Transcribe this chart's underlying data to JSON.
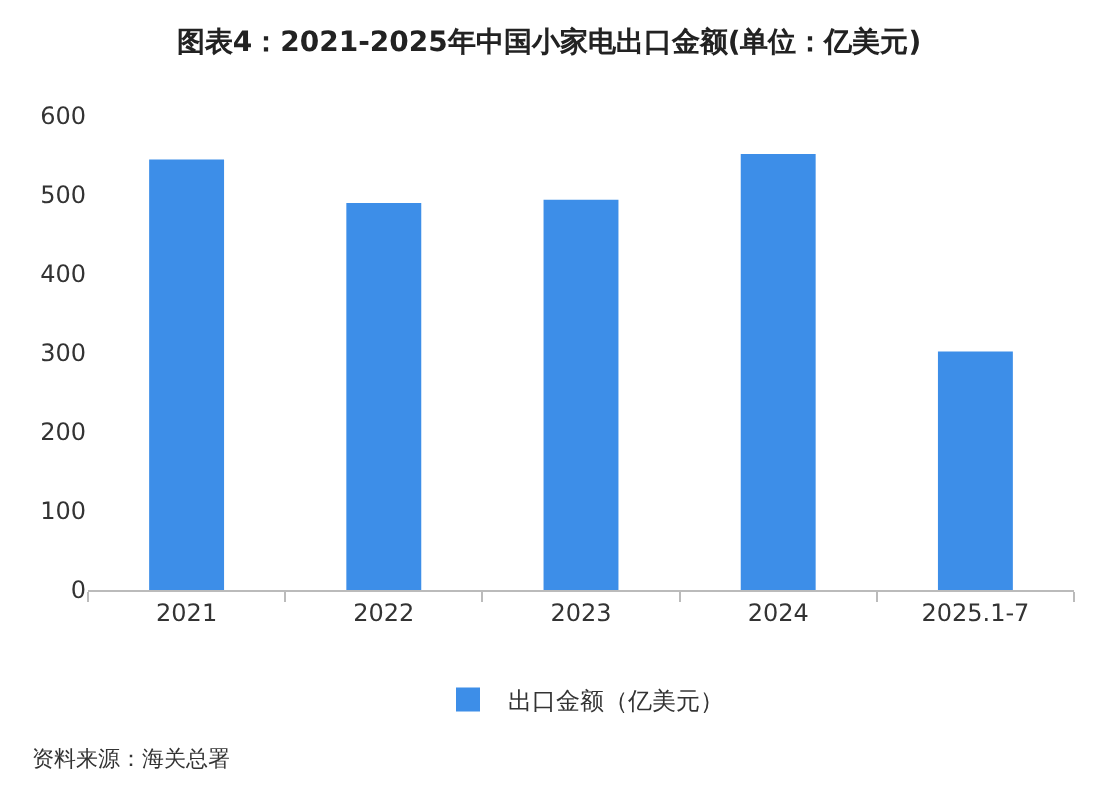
{
  "chart_data": {
    "type": "bar",
    "title": "图表4：2021-2025年中国小家电出口金额(单位：亿美元)",
    "categories": [
      "2021",
      "2022",
      "2023",
      "2024",
      "2025.1-7"
    ],
    "series": [
      {
        "name": "出口金额（亿美元）",
        "color": "#3d8ee8",
        "values": [
          545,
          490,
          494,
          552,
          302
        ]
      }
    ],
    "ylim": [
      0,
      600
    ],
    "yticks": [
      0,
      100,
      200,
      300,
      400,
      500,
      600
    ],
    "grid": false,
    "legend": "bottom",
    "annotations": [
      "资料来源：海关总署"
    ]
  }
}
